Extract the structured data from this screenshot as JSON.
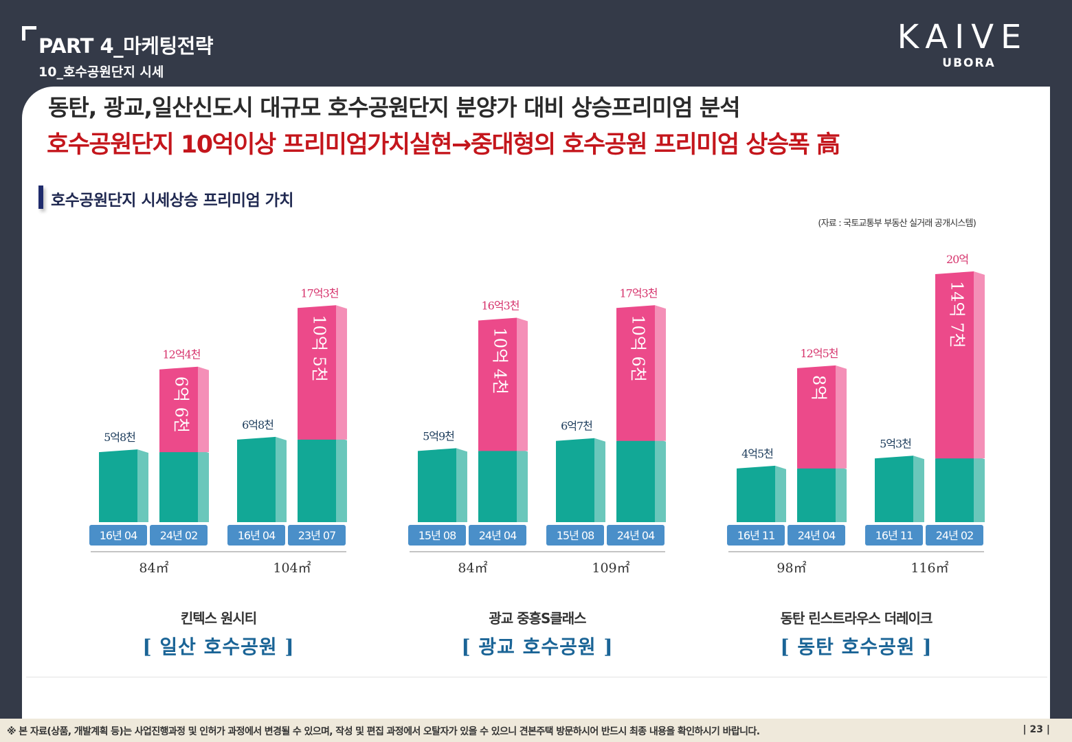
{
  "header": {
    "part_title": "PART 4_마케팅전략",
    "part_subtitle": "10_호수공원단지 시세"
  },
  "brand": {
    "name": "KAIVE",
    "sub": "UBORA"
  },
  "headline": {
    "line1": "동탄, 광교,일산신도시 대규모 호수공원단지 분양가 대비 상승프리미엄 분석",
    "line2": "호수공원단지 10억이상 프리미엄가치실현→중대형의 호수공원 프리미엄 상승폭 高"
  },
  "section_title": "호수공원단지 시세상승 프리미엄 가치",
  "source": "(자료 : 국토교통부 부동산 실거래 공개시스템)",
  "colors": {
    "teal": "#12a896",
    "pink": "#ec4a8a",
    "label_blue": "#4a8fc9",
    "group_title": "#1a6496"
  },
  "chart_data": {
    "type": "bar",
    "value_unit": "억",
    "groups": [
      {
        "name": "킨텍스 원시티",
        "location": "[ 일산 호수공원 ]",
        "units": [
          {
            "size": "84㎡",
            "bars": [
              {
                "date": "16년 04",
                "value": 5.8,
                "label": "5억8천"
              },
              {
                "date": "24년 02",
                "value": 12.4,
                "base": 5.8,
                "label": "12억4천",
                "premium": "6억 6천"
              }
            ]
          },
          {
            "size": "104㎡",
            "bars": [
              {
                "date": "16년 04",
                "value": 6.8,
                "label": "6억8천"
              },
              {
                "date": "23년 07",
                "value": 17.3,
                "base": 6.8,
                "label": "17억3천",
                "premium": "10억 5천"
              }
            ]
          }
        ]
      },
      {
        "name": "광교 중흥S클래스",
        "location": "[ 광교 호수공원 ]",
        "units": [
          {
            "size": "84㎡",
            "bars": [
              {
                "date": "15년 08",
                "value": 5.9,
                "label": "5억9천"
              },
              {
                "date": "24년 04",
                "value": 16.3,
                "base": 5.9,
                "label": "16억3천",
                "premium": "10억 4천"
              }
            ]
          },
          {
            "size": "109㎡",
            "bars": [
              {
                "date": "15년 08",
                "value": 6.7,
                "label": "6억7천"
              },
              {
                "date": "24년 04",
                "value": 17.3,
                "base": 6.7,
                "label": "17억3천",
                "premium": "10억 6천"
              }
            ]
          }
        ]
      },
      {
        "name": "동탄 린스트라우스 더레이크",
        "location": "[ 동탄 호수공원 ]",
        "units": [
          {
            "size": "98㎡",
            "bars": [
              {
                "date": "16년 11",
                "value": 4.5,
                "label": "4억5천"
              },
              {
                "date": "24년 04",
                "value": 12.5,
                "base": 4.5,
                "label": "12억5천",
                "premium": "8억"
              }
            ]
          },
          {
            "size": "116㎡",
            "bars": [
              {
                "date": "16년 11",
                "value": 5.3,
                "label": "5억3천"
              },
              {
                "date": "24년 02",
                "value": 20,
                "base": 5.3,
                "label": "20억",
                "premium": "14억 7천"
              }
            ]
          }
        ]
      }
    ]
  },
  "footer": {
    "note": "※ 본 자료(상품, 개발계획 등)는 사업진행과정 및 인허가 과정에서 변경될 수 있으며, 작성 및 편집 과정에서 오탈자가 있을 수 있으니 견본주택 방문하시어 반드시 최종 내용을 확인하시기 바랍니다.",
    "page": "| 23 |"
  }
}
